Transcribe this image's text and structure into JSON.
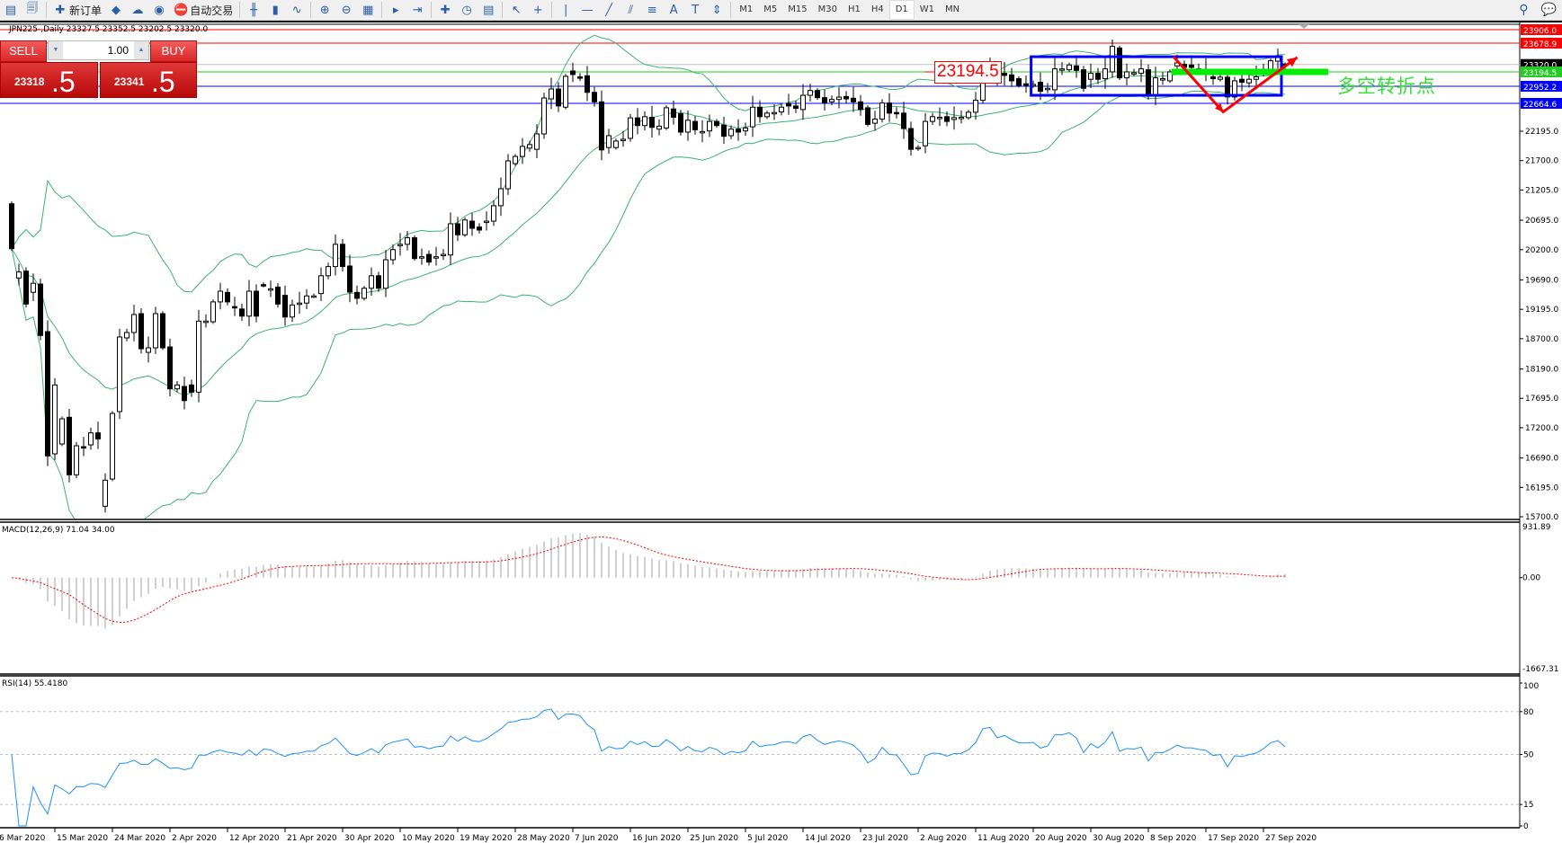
{
  "toolbar": {
    "buttons": [
      {
        "icon": "new-chart-icon"
      },
      {
        "icon": "profiles-icon"
      },
      {
        "sep": true
      },
      {
        "icon": "new-order-icon",
        "label": "新订单"
      },
      {
        "icon": "metaeditor-icon"
      },
      {
        "icon": "history-center-icon"
      },
      {
        "icon": "signals-icon"
      },
      {
        "icon": "autotrading-icon",
        "label": "自动交易"
      },
      {
        "sep": true
      },
      {
        "icon": "bar-chart-icon"
      },
      {
        "icon": "candlestick-chart-icon"
      },
      {
        "icon": "line-chart-icon"
      },
      {
        "sep": true
      },
      {
        "icon": "zoom-in-icon"
      },
      {
        "icon": "zoom-out-icon"
      },
      {
        "icon": "tile-windows-icon"
      },
      {
        "sep": true
      },
      {
        "icon": "autoscroll-icon"
      },
      {
        "icon": "chart-shift-icon"
      },
      {
        "sep": true
      },
      {
        "icon": "indicators-icon"
      },
      {
        "icon": "periods-icon"
      },
      {
        "icon": "templates-icon"
      },
      {
        "sep": true
      },
      {
        "icon": "cursor-icon"
      },
      {
        "icon": "crosshair-icon"
      },
      {
        "sep": true
      },
      {
        "icon": "vertical-line-icon"
      },
      {
        "icon": "horizontal-line-icon"
      },
      {
        "icon": "trendline-icon"
      },
      {
        "icon": "equidistant-channel-icon"
      },
      {
        "icon": "fibonacci-icon"
      },
      {
        "icon": "text-icon"
      },
      {
        "icon": "text-label-icon"
      },
      {
        "icon": "arrows-icon"
      },
      {
        "sep": true
      }
    ],
    "timeframes": [
      "M1",
      "M5",
      "M15",
      "M30",
      "H1",
      "H4",
      "D1",
      "W1",
      "MN"
    ],
    "active_timeframe": "D1",
    "right_icons": [
      "search-icon",
      "chat-icon"
    ]
  },
  "chart_title": "JPN225-,Daily  23327.5 23352.5 23202.5 23320.0",
  "trade_panel": {
    "sell_label": "SELL",
    "buy_label": "BUY",
    "lot": "1.00",
    "sell_price_main": "23318",
    "sell_price_pip": ".5",
    "buy_price_main": "23341",
    "buy_price_pip": ".5"
  },
  "annotations": {
    "level_label": "23194.5",
    "zh_label": "多空转折点",
    "rectangle": {
      "from_bar": 141.7,
      "to_bar": 176.5,
      "top": 23450,
      "bottom": 22800,
      "color": "#0000ff"
    },
    "green_bar": {
      "from_bar": 161.2,
      "to_bar": 183.0,
      "price": 23194.5,
      "color": "#00ee00"
    },
    "arrow_path": [
      [
        161.5,
        23450
      ],
      [
        168.4,
        22520
      ],
      [
        178.7,
        23440
      ]
    ],
    "arrow_color": "#ff0000"
  },
  "colors": {
    "band": "#3cb371",
    "macd_hist": "#c0c0c0",
    "macd_signal": "#ff0000",
    "rsi": "#1e90ff"
  },
  "chart_data": [
    {
      "type": "candlestick",
      "symbol": "JPN225-",
      "timeframe": "Daily",
      "ylim": [
        15700,
        23906
      ],
      "y_ticks": [
        "22195.0",
        "21700.0",
        "21205.0",
        "20695.0",
        "20200.0",
        "19690.0",
        "19195.0",
        "18700.0",
        "18190.0",
        "17695.0",
        "17200.0",
        "16690.0",
        "16195.0",
        "15700.0"
      ],
      "levels": [
        {
          "price": 23906.0,
          "label": "23906.0",
          "color": "#ff0000"
        },
        {
          "price": 23678.9,
          "label": "23678.9",
          "color": "#ff0000"
        },
        {
          "price": 23320.0,
          "label": "23320.0",
          "color": "#000000",
          "line_color": "#c0c0c0"
        },
        {
          "price": 23194.5,
          "label": "23194.5",
          "color": "#22cc22"
        },
        {
          "price": 22952.2,
          "label": "22952.2",
          "color": "#0000ff"
        },
        {
          "price": 22664.6,
          "label": "22664.6",
          "color": "#0000ff"
        }
      ],
      "x_labels": [
        "6 Mar 2020",
        "15 Mar 2020",
        "24 Mar 2020",
        "2 Apr 2020",
        "12 Apr 2020",
        "21 Apr 2020",
        "30 Apr 2020",
        "10 May 2020",
        "19 May 2020",
        "28 May 2020",
        "7 Jun 2020",
        "16 Jun 2020",
        "25 Jun 2020",
        "5 Jul 2020",
        "14 Jul 2020",
        "23 Jul 2020",
        "2 Aug 2020",
        "11 Aug 2020",
        "20 Aug 2020",
        "30 Aug 2020",
        "8 Sep 2020",
        "17 Sep 2020",
        "27 Sep 2020"
      ],
      "indicator": "Bollinger Bands",
      "open": [
        20973,
        19723,
        19838,
        19482,
        19620,
        18819,
        16760,
        16926,
        17376,
        16407,
        16880,
        16911,
        17113,
        15877,
        16336,
        17472,
        18713,
        18804,
        19122,
        18470,
        18546,
        19122,
        18561,
        17855,
        17895,
        17921,
        17800,
        18990,
        18985,
        19320,
        19480,
        19240,
        19200,
        19080,
        19500,
        19610,
        19530,
        19570,
        19430,
        19065,
        19290,
        19300,
        19420,
        19460,
        19760,
        19915,
        20290,
        19924,
        19480,
        19380,
        19550,
        19760,
        19550,
        20030,
        20270,
        20290,
        20400,
        20070,
        20120,
        20080,
        20110,
        20110,
        20636,
        20450,
        20680,
        20580,
        20670,
        20680,
        20940,
        21226,
        21650,
        21770,
        21910,
        21890,
        22150,
        22740,
        22906,
        22600,
        23210,
        23110,
        23130,
        22850,
        22690,
        21920,
        21920,
        22060,
        22075,
        22420,
        22290,
        22430,
        22230,
        22250,
        22570,
        22490,
        22180,
        22360,
        22180,
        22200,
        22360,
        22300,
        22120,
        22230,
        22200,
        22270,
        22600,
        22440,
        22510,
        22520,
        22660,
        22620,
        22560,
        22800,
        22880,
        22760,
        22690,
        22730,
        22780,
        22750,
        22690,
        22590,
        22330,
        22400,
        22670,
        22510,
        22500,
        22240,
        21900,
        21950,
        22360,
        22430,
        22440,
        22393,
        22430,
        22424,
        22515,
        22716,
        23170,
        23270,
        23170,
        23145,
        23080,
        22994,
        22984,
        23020,
        22918,
        22893,
        23245,
        23230,
        23296,
        23230,
        23070,
        23170,
        23080,
        23195,
        23598,
        23094,
        23180,
        23170,
        23230,
        22806,
        23080,
        23044,
        23296,
        23321,
        23311,
        23245,
        23235,
        23110,
        23070,
        23105,
        22772,
        23070,
        23010,
        23070,
        23220,
        23220,
        23376,
        23327.5
      ],
      "close": [
        20216,
        19823,
        19284,
        19634,
        18754,
        16725,
        17921,
        17350,
        16407,
        16896,
        16870,
        17113,
        17012,
        16316,
        17441,
        18728,
        18804,
        19107,
        18531,
        18546,
        19122,
        18546,
        17855,
        17921,
        17657,
        17800,
        18996,
        18996,
        19320,
        19500,
        19320,
        19230,
        19080,
        19500,
        19080,
        19600,
        19540,
        19283,
        19065,
        19268,
        19300,
        19420,
        19420,
        19760,
        19915,
        20290,
        19915,
        19485,
        19380,
        19550,
        19760,
        19550,
        20030,
        20200,
        20290,
        20400,
        20050,
        20080,
        19990,
        20080,
        20120,
        20636,
        20450,
        20700,
        20560,
        20530,
        20680,
        20940,
        21226,
        21695,
        21770,
        21940,
        21970,
        22150,
        22755,
        22906,
        22620,
        23120,
        23150,
        23100,
        22850,
        22690,
        21880,
        22120,
        22030,
        22060,
        22420,
        22290,
        22440,
        22260,
        22280,
        22590,
        22430,
        22180,
        22380,
        22220,
        22190,
        22360,
        22290,
        22110,
        22230,
        22180,
        22250,
        22600,
        22440,
        22500,
        22510,
        22600,
        22620,
        22580,
        22800,
        22880,
        22760,
        22670,
        22730,
        22770,
        22740,
        22690,
        22560,
        22310,
        22400,
        22670,
        22500,
        22490,
        22240,
        21890,
        21920,
        22360,
        22440,
        22430,
        22360,
        22424,
        22430,
        22515,
        22716,
        23220,
        23270,
        23044,
        23135,
        23044,
        22968,
        22968,
        22984,
        22867,
        22918,
        23245,
        23245,
        23311,
        23220,
        22918,
        23170,
        23070,
        23245,
        23624,
        23094,
        23195,
        23180,
        23245,
        22806,
        23094,
        23080,
        23195,
        23346,
        23270,
        23270,
        23230,
        23210,
        23080,
        23105,
        22772,
        23044,
        23020,
        23070,
        23110,
        23220,
        23381,
        23447,
        23320
      ],
      "last_bar": {
        "open": 23327.5,
        "high": 23352.5,
        "low": 23202.5,
        "close": 23320.0
      }
    },
    {
      "type": "bar",
      "label": "MACD(12,26,9) 71.04 34.00",
      "params": [
        12,
        26,
        9
      ],
      "ylim": [
        -1667.31,
        931.89
      ],
      "y_ticks": [
        "931.89",
        "0.00",
        "-1667.31"
      ]
    },
    {
      "type": "line",
      "label": "RSI(14) 55.4180",
      "period": 14,
      "ylim": [
        0,
        100
      ],
      "levels": [
        80,
        50,
        15
      ],
      "y_ticks": [
        "100",
        "80",
        "50",
        "15",
        "0"
      ]
    }
  ]
}
